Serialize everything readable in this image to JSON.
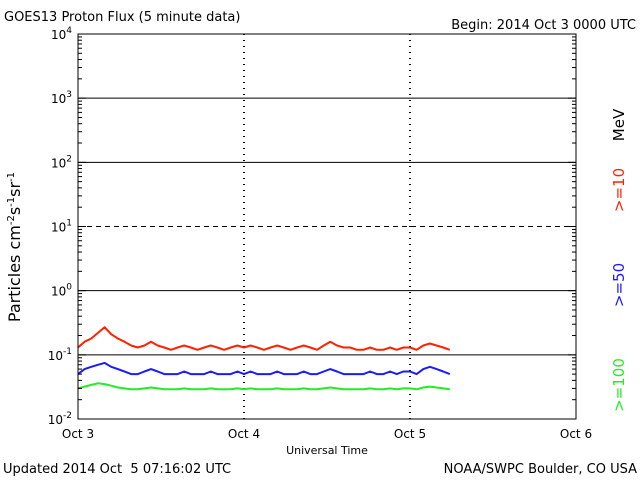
{
  "header": {
    "title": "GOES13 Proton Flux (5 minute data)",
    "begin": "Begin: 2014 Oct 3 0000 UTC"
  },
  "footer": {
    "updated": "Updated 2014 Oct  5 07:16:02 UTC",
    "credit": "NOAA/SWPC Boulder, CO USA"
  },
  "chart_data": {
    "type": "line",
    "title": "GOES13 Proton Flux (5 minute data)",
    "xlabel": "Universal Time",
    "ylabel": "Particles cm-2 s-1 sr-1",
    "ylabel_parts": {
      "base": "Particles cm",
      "sup1": "-2",
      "s": "s",
      "sup2": "-1",
      "sr": "sr",
      "sup3": "-1"
    },
    "x_unit": "days since 2014 Oct 3 0000 UTC",
    "xlim": [
      0,
      3
    ],
    "x_ticks": [
      {
        "value": 0,
        "label": "Oct 3"
      },
      {
        "value": 1,
        "label": "Oct 4"
      },
      {
        "value": 2,
        "label": "Oct 5"
      },
      {
        "value": 3,
        "label": "Oct 6"
      }
    ],
    "y_scale": "log",
    "ylim": [
      0.01,
      10000
    ],
    "y_ticks": [
      {
        "value": 0.01,
        "base": "10",
        "exp": "-2"
      },
      {
        "value": 0.1,
        "base": "10",
        "exp": "-1"
      },
      {
        "value": 1,
        "base": "10",
        "exp": "0"
      },
      {
        "value": 10,
        "base": "10",
        "exp": "1"
      },
      {
        "value": 100,
        "base": "10",
        "exp": "2"
      },
      {
        "value": 1000,
        "base": "10",
        "exp": "3"
      },
      {
        "value": 10000,
        "base": "10",
        "exp": "4"
      }
    ],
    "grid": "horizontal lines at each decade; 10^1 line dashed",
    "unit_label": "MeV",
    "series": [
      {
        "name": ">=10",
        "color": "#ff2200",
        "x_start": 0,
        "x_step": 0.04,
        "values": [
          0.13,
          0.16,
          0.18,
          0.22,
          0.27,
          0.21,
          0.18,
          0.16,
          0.14,
          0.13,
          0.14,
          0.16,
          0.14,
          0.13,
          0.12,
          0.13,
          0.14,
          0.13,
          0.12,
          0.13,
          0.14,
          0.13,
          0.12,
          0.13,
          0.14,
          0.13,
          0.14,
          0.13,
          0.12,
          0.13,
          0.14,
          0.13,
          0.12,
          0.13,
          0.14,
          0.13,
          0.12,
          0.14,
          0.16,
          0.14,
          0.13,
          0.13,
          0.12,
          0.12,
          0.13,
          0.12,
          0.12,
          0.13,
          0.12,
          0.13,
          0.13,
          0.12,
          0.14,
          0.15,
          0.14,
          0.13,
          0.12
        ]
      },
      {
        "name": ">=50",
        "color": "#1a1aff",
        "x_start": 0,
        "x_step": 0.04,
        "values": [
          0.05,
          0.06,
          0.065,
          0.07,
          0.075,
          0.065,
          0.06,
          0.055,
          0.05,
          0.05,
          0.055,
          0.06,
          0.055,
          0.05,
          0.05,
          0.05,
          0.055,
          0.05,
          0.05,
          0.05,
          0.055,
          0.05,
          0.05,
          0.05,
          0.055,
          0.05,
          0.055,
          0.05,
          0.05,
          0.05,
          0.055,
          0.05,
          0.05,
          0.05,
          0.055,
          0.05,
          0.05,
          0.055,
          0.06,
          0.055,
          0.05,
          0.05,
          0.05,
          0.05,
          0.055,
          0.05,
          0.05,
          0.055,
          0.05,
          0.055,
          0.055,
          0.05,
          0.06,
          0.065,
          0.06,
          0.055,
          0.05
        ]
      },
      {
        "name": ">=100",
        "color": "#22ee22",
        "x_start": 0,
        "x_step": 0.04,
        "values": [
          0.03,
          0.032,
          0.034,
          0.036,
          0.035,
          0.033,
          0.031,
          0.03,
          0.029,
          0.029,
          0.03,
          0.031,
          0.03,
          0.029,
          0.029,
          0.029,
          0.03,
          0.029,
          0.029,
          0.029,
          0.03,
          0.029,
          0.029,
          0.029,
          0.03,
          0.029,
          0.03,
          0.029,
          0.029,
          0.029,
          0.03,
          0.029,
          0.029,
          0.029,
          0.03,
          0.029,
          0.029,
          0.03,
          0.031,
          0.03,
          0.029,
          0.029,
          0.029,
          0.029,
          0.03,
          0.029,
          0.029,
          0.03,
          0.029,
          0.03,
          0.03,
          0.029,
          0.031,
          0.032,
          0.031,
          0.03,
          0.029
        ]
      }
    ]
  }
}
